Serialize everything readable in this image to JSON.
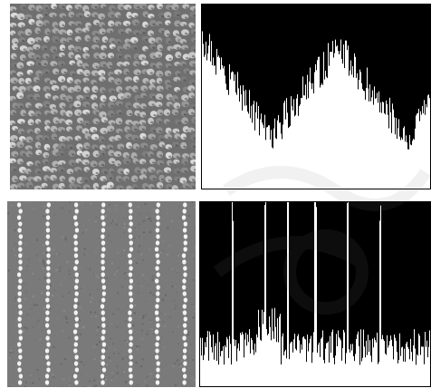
{
  "colors": {
    "background": "#ffffff",
    "hist_fill": "#000000",
    "hist_background": "#ffffff",
    "texture_top_base": "#6f6f6f",
    "texture_bottom_base": "#7a7a7a",
    "watermark": "#808080"
  },
  "panels": [
    {
      "id": "texture-top",
      "kind": "texture-image",
      "description_icon": "texture-pebbles"
    },
    {
      "id": "histogram-top",
      "kind": "histogram"
    },
    {
      "id": "texture-bottom",
      "kind": "texture-image",
      "description_icon": "texture-stripes"
    },
    {
      "id": "histogram-bottom",
      "kind": "histogram"
    }
  ]
}
